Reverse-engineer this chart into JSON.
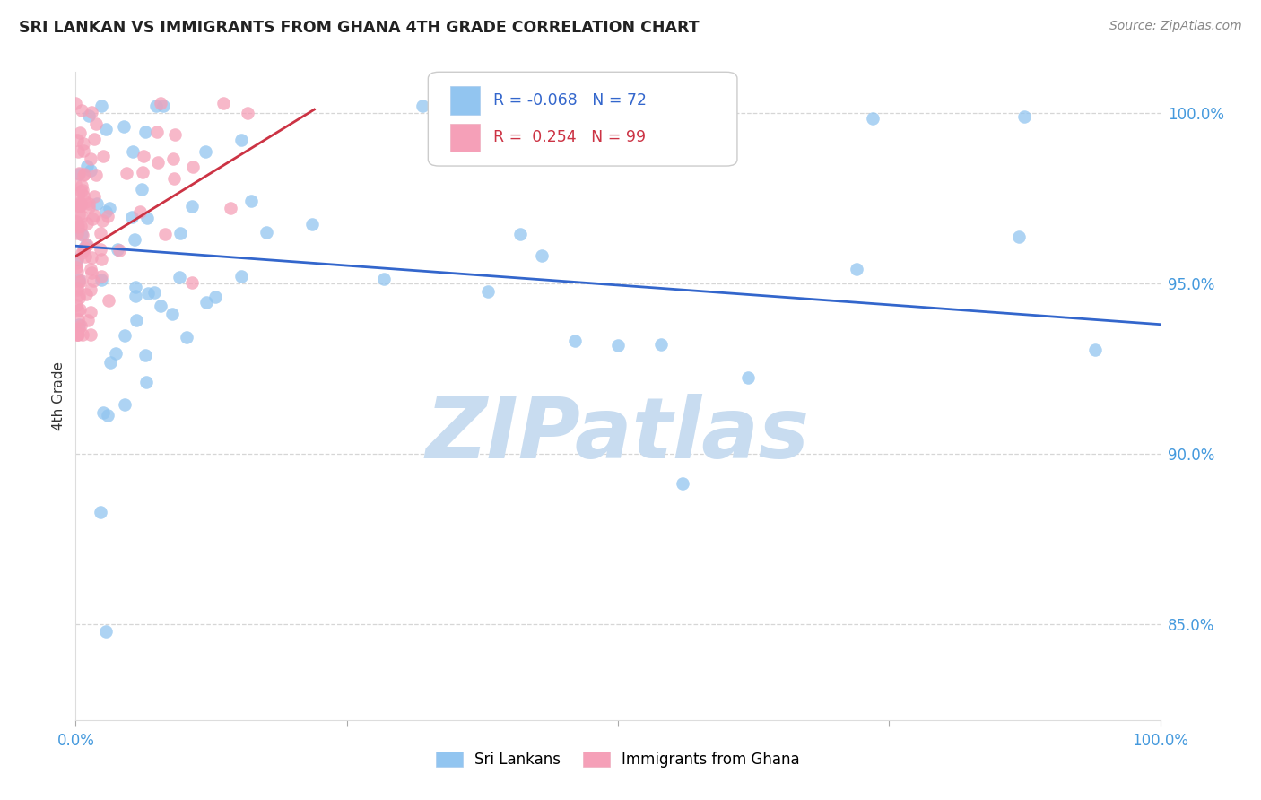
{
  "title": "SRI LANKAN VS IMMIGRANTS FROM GHANA 4TH GRADE CORRELATION CHART",
  "source": "Source: ZipAtlas.com",
  "ylabel": "4th Grade",
  "ytick_labels": [
    "100.0%",
    "95.0%",
    "90.0%",
    "85.0%"
  ],
  "ytick_values": [
    1.0,
    0.95,
    0.9,
    0.85
  ],
  "xlim": [
    0.0,
    1.0
  ],
  "ylim": [
    0.822,
    1.012
  ],
  "legend_blue_r": "-0.068",
  "legend_blue_n": "72",
  "legend_pink_r": "0.254",
  "legend_pink_n": "99",
  "blue_color": "#92C5F0",
  "pink_color": "#F5A0B8",
  "trendline_blue_color": "#3366CC",
  "trendline_pink_color": "#CC3344",
  "watermark_color": "#C8DCF0",
  "title_color": "#222222",
  "axis_label_color": "#4499DD",
  "grid_color": "#CCCCCC",
  "blue_trend_x0": 0.0,
  "blue_trend_y0": 0.961,
  "blue_trend_x1": 1.0,
  "blue_trend_y1": 0.938,
  "pink_trend_x0": 0.0,
  "pink_trend_y0": 0.958,
  "pink_trend_x1": 0.22,
  "pink_trend_y1": 1.001
}
